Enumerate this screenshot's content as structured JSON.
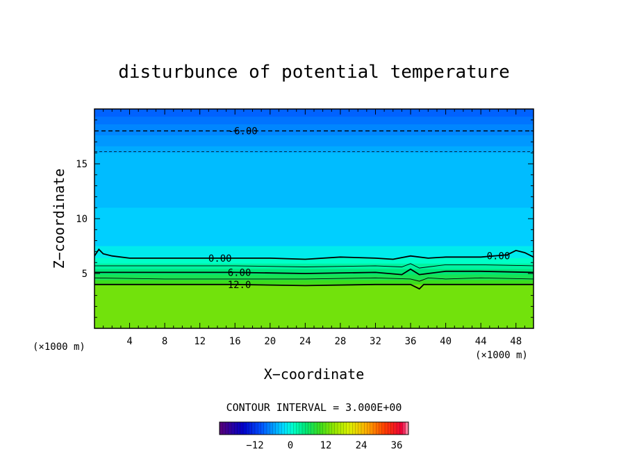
{
  "chart_data": {
    "type": "heatmap",
    "title": "disturbunce of potential temperature",
    "xlabel": "X−coordinate",
    "ylabel": "Z−coordinate",
    "x_unit_left": "(×1000 m)",
    "x_unit_right": "(×1000 m)",
    "xlim": [
      0,
      50
    ],
    "ylim": [
      0,
      20
    ],
    "x_ticks": [
      4,
      8,
      12,
      16,
      20,
      24,
      28,
      32,
      36,
      40,
      44,
      48
    ],
    "y_ticks": [
      5,
      10,
      15
    ],
    "grid": false,
    "contour_interval_text": "CONTOUR INTERVAL = 3.000E+00",
    "color_levels": [
      {
        "z": 20.0,
        "value": -9
      },
      {
        "z": 19.3,
        "value": -8
      },
      {
        "z": 18.6,
        "value": -7
      },
      {
        "z": 17.6,
        "value": -6
      },
      {
        "z": 16.6,
        "value": -5
      },
      {
        "z": 16.0,
        "value": -4
      },
      {
        "z": 11.0,
        "value": -3
      },
      {
        "z": 7.5,
        "value": -1
      },
      {
        "z": 6.4,
        "value": 1
      },
      {
        "z": 5.9,
        "value": 3
      },
      {
        "z": 5.4,
        "value": 5
      },
      {
        "z": 4.9,
        "value": 7
      },
      {
        "z": 4.4,
        "value": 10
      },
      {
        "z": 4.0,
        "value": 13
      },
      {
        "z": 0.0,
        "value": 13
      }
    ],
    "contours": [
      {
        "level": -6,
        "label": "-6.00",
        "style": "dashed",
        "points": [
          [
            0,
            18.0
          ],
          [
            50,
            18.0
          ]
        ],
        "label_at": [
          16.9,
          18.0
        ]
      },
      {
        "level": -3,
        "label": "",
        "style": "dashed-thin",
        "points": [
          [
            0,
            16.1
          ],
          [
            50,
            16.1
          ]
        ]
      },
      {
        "level": 0,
        "label": "0.00",
        "style": "solid",
        "points": [
          [
            0,
            6.6
          ],
          [
            0.5,
            7.2
          ],
          [
            1,
            6.8
          ],
          [
            2,
            6.6
          ],
          [
            4,
            6.4
          ],
          [
            8,
            6.4
          ],
          [
            12,
            6.4
          ],
          [
            16,
            6.4
          ],
          [
            20,
            6.4
          ],
          [
            24,
            6.3
          ],
          [
            28,
            6.5
          ],
          [
            32,
            6.4
          ],
          [
            34,
            6.3
          ],
          [
            36,
            6.6
          ],
          [
            38,
            6.4
          ],
          [
            40,
            6.5
          ],
          [
            44,
            6.5
          ],
          [
            47,
            6.7
          ],
          [
            48,
            7.1
          ],
          [
            49,
            6.9
          ],
          [
            50,
            6.5
          ]
        ],
        "label_at": [
          14.3,
          6.4
        ],
        "label2": "0.00",
        "label2_at": [
          46.0,
          6.6
        ]
      },
      {
        "level": 3,
        "label": "",
        "style": "solid-thin",
        "points": [
          [
            0,
            5.7
          ],
          [
            8,
            5.7
          ],
          [
            16,
            5.7
          ],
          [
            24,
            5.6
          ],
          [
            32,
            5.7
          ],
          [
            35,
            5.6
          ],
          [
            36,
            5.9
          ],
          [
            37,
            5.5
          ],
          [
            38,
            5.6
          ],
          [
            40,
            5.8
          ],
          [
            44,
            5.8
          ],
          [
            50,
            5.7
          ]
        ]
      },
      {
        "level": 6,
        "label": "6.00",
        "style": "solid",
        "points": [
          [
            0,
            5.1
          ],
          [
            8,
            5.1
          ],
          [
            16,
            5.1
          ],
          [
            24,
            5.0
          ],
          [
            32,
            5.1
          ],
          [
            35,
            4.9
          ],
          [
            36,
            5.4
          ],
          [
            37,
            4.9
          ],
          [
            38,
            5.0
          ],
          [
            40,
            5.2
          ],
          [
            44,
            5.2
          ],
          [
            50,
            5.1
          ]
        ],
        "label_at": [
          16.5,
          5.1
        ]
      },
      {
        "level": 9,
        "label": "",
        "style": "solid-thin",
        "points": [
          [
            0,
            4.6
          ],
          [
            8,
            4.5
          ],
          [
            16,
            4.5
          ],
          [
            24,
            4.5
          ],
          [
            32,
            4.6
          ],
          [
            36,
            4.5
          ],
          [
            37,
            4.3
          ],
          [
            38,
            4.6
          ],
          [
            40,
            4.5
          ],
          [
            44,
            4.6
          ],
          [
            50,
            4.5
          ]
        ]
      },
      {
        "level": 12,
        "label": "12.0",
        "style": "solid",
        "points": [
          [
            0,
            4.0
          ],
          [
            8,
            4.0
          ],
          [
            16,
            4.0
          ],
          [
            24,
            3.9
          ],
          [
            32,
            4.0
          ],
          [
            36,
            4.0
          ],
          [
            37,
            3.6
          ],
          [
            37.5,
            4.0
          ],
          [
            40,
            4.0
          ],
          [
            44,
            4.0
          ],
          [
            50,
            4.0
          ]
        ],
        "label_at": [
          16.5,
          4.0
        ]
      }
    ],
    "colorbar": {
      "ticks": [
        "−12",
        "0",
        "12",
        "24",
        "36"
      ],
      "tick_values": [
        -12,
        0,
        12,
        24,
        36
      ],
      "range": [
        -24,
        40
      ]
    }
  }
}
